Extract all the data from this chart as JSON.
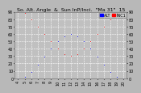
{
  "title": "So. Alt. Angle  &  Sun InP/Inci.  \"Ma 31\"  15",
  "legend_blue": "ALT",
  "legend_red": "INC1",
  "fig_bg": "#b8b8b8",
  "plot_bg": "#c0c0c0",
  "grid_color": "#ffffff",
  "blue_color": "#0000ff",
  "red_color": "#ff0000",
  "ylim": [
    0,
    90
  ],
  "xlim": [
    3.5,
    20.5
  ],
  "time_hours": [
    4,
    5,
    6,
    7,
    8,
    9,
    10,
    11,
    12,
    13,
    14,
    15,
    16,
    17,
    18,
    19,
    20
  ],
  "sun_altitude": [
    0,
    2,
    8,
    18,
    29,
    40,
    50,
    57,
    60,
    57,
    50,
    40,
    29,
    18,
    8,
    2,
    0
  ],
  "sun_incidence": [
    90,
    88,
    80,
    70,
    60,
    50,
    40,
    33,
    30,
    33,
    40,
    50,
    60,
    70,
    80,
    88,
    90
  ],
  "title_fontsize": 4.5,
  "tick_fontsize": 3.5,
  "legend_fontsize": 3.5,
  "marker_size": 1.2,
  "yticks": [
    0,
    10,
    20,
    30,
    40,
    50,
    60,
    70,
    80,
    90
  ],
  "xticks": [
    4,
    5,
    6,
    7,
    8,
    9,
    10,
    11,
    12,
    13,
    14,
    15,
    16,
    17,
    18,
    19,
    20
  ]
}
